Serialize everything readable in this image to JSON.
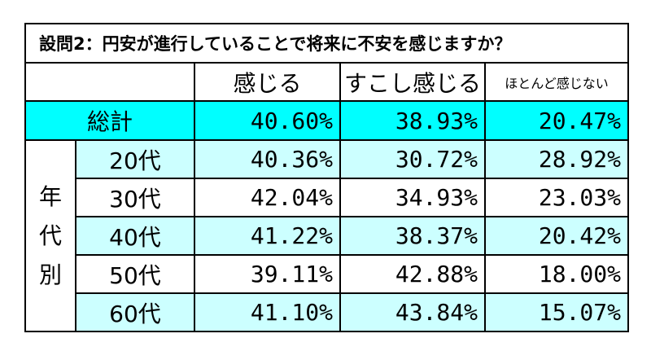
{
  "question": "設問2：円安が進行していることで将来に不安を感じますか？",
  "columns": [
    "感じる",
    "すこし感じる",
    "ほとんど感じない"
  ],
  "group_label": "年代別",
  "chart_data": {
    "type": "table",
    "title": "設問2：円安が進行していることで将来に不安を感じますか？",
    "columns": [
      "感じる",
      "すこし感じる",
      "ほとんど感じない"
    ],
    "rows": [
      {
        "label": "総計",
        "values": [
          "40.60%",
          "38.93%",
          "20.47%"
        ]
      },
      {
        "label": "20代",
        "values": [
          "40.36%",
          "30.72%",
          "28.92%"
        ]
      },
      {
        "label": "30代",
        "values": [
          "42.04%",
          "34.93%",
          "23.03%"
        ]
      },
      {
        "label": "40代",
        "values": [
          "41.22%",
          "38.37%",
          "20.42%"
        ]
      },
      {
        "label": "50代",
        "values": [
          "39.11%",
          "42.88%",
          "18.00%"
        ]
      },
      {
        "label": "60代",
        "values": [
          "41.10%",
          "43.84%",
          "15.07%"
        ]
      }
    ]
  },
  "colors": {
    "total_row": "#00ffff",
    "shaded_row": "#ccffff",
    "border": "#000000"
  }
}
